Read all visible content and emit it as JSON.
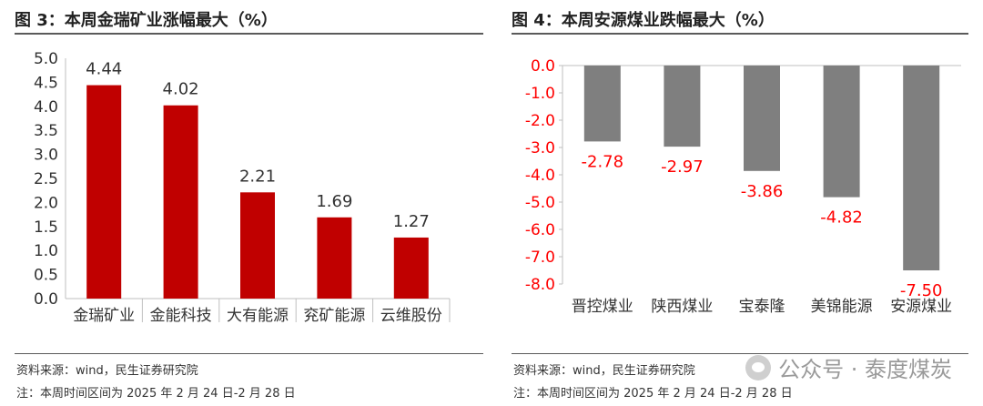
{
  "left_panel": {
    "title": "图 3：本周金瑞矿业涨幅最大（%）",
    "source_note": "资料来源：wind，民生证券研究院",
    "period_note": "注：本周时间区间为 2025 年 2 月 24 日-2 月 28 日"
  },
  "right_panel": {
    "title": "图 4：本周安源煤业跌幅最大（%）",
    "source_note": "资料来源：wind，民生证券研究院",
    "period_note": "注：本周时间区间为 2025 年 2 月 24 日-2 月 28 日"
  },
  "watermark": "公众号 · 泰度煤炭",
  "chart_data": [
    {
      "type": "bar",
      "title": "图 3：本周金瑞矿业涨幅最大（%）",
      "categories": [
        "金瑞矿业",
        "金能科技",
        "大有能源",
        "兖矿能源",
        "云维股份"
      ],
      "values": [
        4.44,
        4.02,
        2.21,
        1.69,
        1.27
      ],
      "value_labels": [
        "4.44",
        "4.02",
        "2.21",
        "1.69",
        "1.27"
      ],
      "ylim": [
        0,
        5
      ],
      "yticks": [
        "0.0",
        "0.5",
        "1.0",
        "1.5",
        "2.0",
        "2.5",
        "3.0",
        "3.5",
        "4.0",
        "4.5",
        "5.0"
      ],
      "bar_color": "#c00000",
      "label_color": "#333333",
      "grid": false,
      "xlabel": "",
      "ylabel": ""
    },
    {
      "type": "bar",
      "title": "图 4：本周安源煤业跌幅最大（%）",
      "categories": [
        "晋控煤业",
        "陕西煤业",
        "宝泰隆",
        "美锦能源",
        "安源煤业"
      ],
      "values": [
        -2.78,
        -2.97,
        -3.86,
        -4.82,
        -7.5
      ],
      "value_labels": [
        "-2.78",
        "-2.97",
        "-3.86",
        "-4.82",
        "-7.50"
      ],
      "ylim": [
        -8,
        0
      ],
      "yticks": [
        "0.0",
        "-1.0",
        "-2.0",
        "-3.0",
        "-4.0",
        "-5.0",
        "-6.0",
        "-7.0",
        "-8.0"
      ],
      "bar_color": "#7f7f7f",
      "label_color": "#ff0000",
      "tick_color": "#ff0000",
      "grid": false,
      "xlabel": "",
      "ylabel": ""
    }
  ]
}
